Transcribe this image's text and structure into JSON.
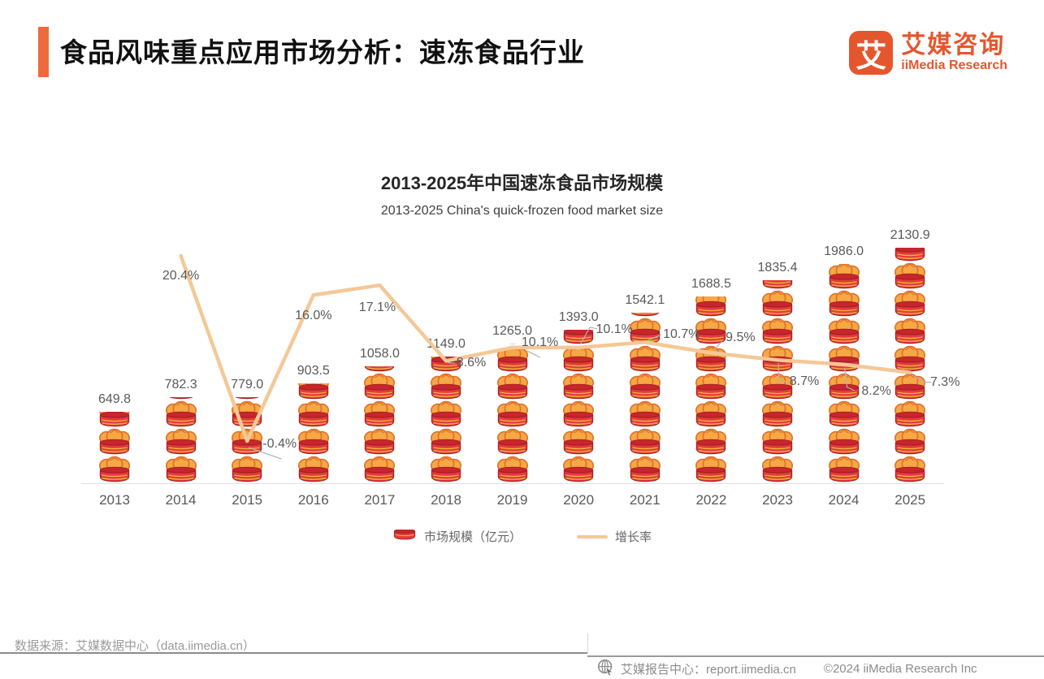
{
  "header": {
    "title": "食品风味重点应用市场分析：速冻食品行业"
  },
  "logo": {
    "mark": "艾",
    "cn": "艾媒咨询",
    "en": "iiMedia Research"
  },
  "chart": {
    "title": "2013-2025年中国速冻食品市场规模",
    "subtitle": "2013-2025 China's quick-frozen food market size",
    "legend": {
      "market": "市场规模（亿元）",
      "growth": "增长率"
    }
  },
  "chart_data": {
    "type": "bar",
    "subtype": "pictorial-bar-with-line",
    "title": "2013-2025年中国速冻食品市场规模",
    "subtitle": "2013-2025 China's quick-frozen food market size",
    "categories": [
      "2013",
      "2014",
      "2015",
      "2016",
      "2017",
      "2018",
      "2019",
      "2020",
      "2021",
      "2022",
      "2023",
      "2024",
      "2025"
    ],
    "series": [
      {
        "name": "市场规模（亿元）",
        "type": "bar",
        "icon": "steamer-basket",
        "unit_per_icon": 250,
        "values": [
          649.8,
          782.3,
          779.0,
          903.5,
          1058.0,
          1149.0,
          1265.0,
          1393.0,
          1542.1,
          1688.5,
          1835.4,
          1986.0,
          2130.9
        ]
      },
      {
        "name": "增长率",
        "type": "line",
        "unit": "%",
        "values": [
          null,
          20.4,
          -0.4,
          16.0,
          17.1,
          8.6,
          10.1,
          10.1,
          10.7,
          9.5,
          8.7,
          8.2,
          7.3
        ]
      }
    ],
    "xlabel": "",
    "ylabel": "",
    "ylim": [
      0,
      2250
    ],
    "y2lim": [
      -3,
      23
    ],
    "grid": false,
    "legend_position": "bottom"
  },
  "footer": {
    "source": "数据来源：艾媒数据中心（data.iimedia.cn）",
    "report_center": "艾媒报告中心：report.iimedia.cn",
    "copyright": "©2024   iiMedia Research Inc"
  },
  "colors": {
    "accent": "#ED6A3C",
    "logo_orange": "#E4572E",
    "basket_red": "#E23B3D",
    "basket_dark": "#A62024",
    "basket_rim": "#C8262C",
    "bun_fill": "#F6A843",
    "bun_stroke": "#DE6F2E",
    "stripe_gold": "#F2B33D",
    "growth_line": "#F4C897",
    "leader_gray": "#b3b3b3",
    "label_gray": "#595959"
  }
}
